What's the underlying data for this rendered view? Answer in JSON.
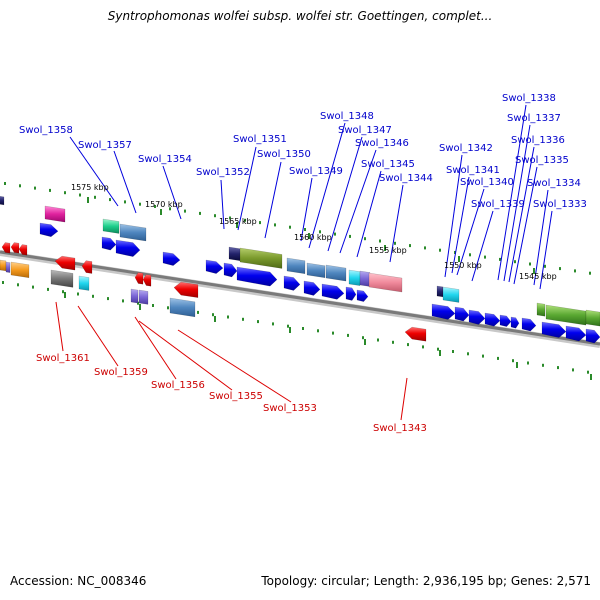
{
  "title": "Syntrophomonas wolfei subsp. wolfei str. Goettingen, complet...",
  "footer": {
    "accession_label": "Accession:",
    "accession": "NC_008346",
    "topology_label": "Topology:",
    "topology": "circular",
    "length_label": "Length:",
    "length": "2,936,195 bp",
    "genes_label": "Genes:",
    "genes": "2,571"
  },
  "kbp_labels": [
    "1575 kbp",
    "1570 kbp",
    "1565 kbp",
    "1560 kbp",
    "1555 kbp",
    "1550 kbp",
    "1545 kbp"
  ],
  "top_gene_labels": [
    "Swol_1358",
    "Swol_1357",
    "Swol_1354",
    "Swol_1352",
    "Swol_1351",
    "Swol_1350",
    "Swol_1349",
    "Swol_1348",
    "Swol_1347",
    "Swol_1346",
    "Swol_1345",
    "Swol_1344",
    "Swol_1342",
    "Swol_1341",
    "Swol_1340",
    "Swol_1339",
    "Swol_1338",
    "Swol_1337",
    "Swol_1336",
    "Swol_1335",
    "Swol_1334",
    "Swol_1333"
  ],
  "bottom_gene_labels": [
    "Swol_1361",
    "Swol_1359",
    "Swol_1356",
    "Swol_1355",
    "Swol_1353",
    "Swol_1343"
  ],
  "colors": {
    "forward_strand": "#0000ee",
    "reverse_strand": "#ee0000",
    "top_label": "#0000cc",
    "bottom_label": "#cc0000",
    "backbone": "#888888",
    "tick": "#228822"
  }
}
